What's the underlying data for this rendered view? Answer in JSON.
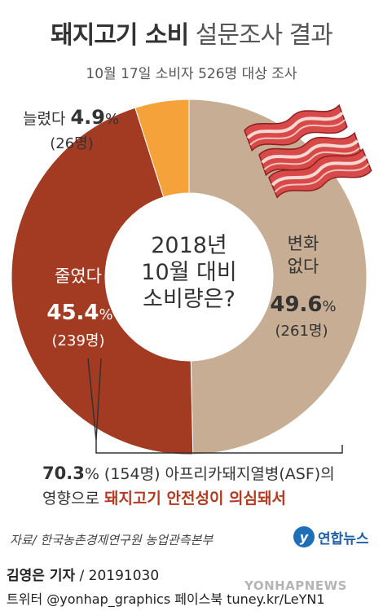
{
  "header": {
    "title_bold": "돼지고기 소비",
    "title_light": "설문조사 결과",
    "subtitle": "10월 17일 소비자 526명 대상 조사"
  },
  "chart_data": {
    "type": "pie",
    "center_label": [
      "2018년",
      "10월 대비",
      "소비량은?"
    ],
    "slices": [
      {
        "label": "변화 없다",
        "label_lines": [
          "변화",
          "없다"
        ],
        "percent": 49.6,
        "percent_text": "49.6",
        "count_text": "(261명)",
        "color": "#c7ad93"
      },
      {
        "label": "줄였다",
        "label_lines": [
          "줄였다"
        ],
        "percent": 45.4,
        "percent_text": "45.4",
        "count_text": "(239명)",
        "color": "#a33b22"
      },
      {
        "label": "늘렸다",
        "label_lines": [
          "늘렸다"
        ],
        "percent": 4.9,
        "percent_text": "4.9",
        "count_text": "(26명)",
        "color": "#f5a23a"
      }
    ],
    "percent_sign": "%"
  },
  "note": {
    "pct": "70.3",
    "pct_sign": "%",
    "line1_rest": " (154명) 아프리카돼지열병(ASF)의",
    "line2_plain": "영향으로 ",
    "line2_accent": "돼지고기 안전성이 의심돼서"
  },
  "footer": {
    "source": "자료/ 한국농촌경제연구원 농업관측본부",
    "logo_mark": "y",
    "logo_text": "연합뉴스",
    "reporter_name": "김영은 기자",
    "reporter_date": " / 20191030",
    "social": "트위터 @yonhap_graphics  페이스북 tuney.kr/LeYN1",
    "watermark": "YONHAPNEWS"
  }
}
